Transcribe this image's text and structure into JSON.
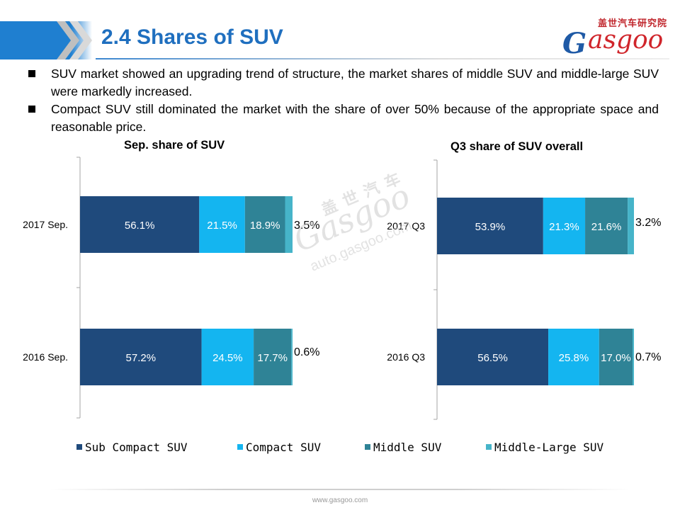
{
  "header": {
    "title": "2.4 Shares of SUV",
    "logo_cn": "盖世汽车研究院",
    "logo_word": "asgoo"
  },
  "bullets": [
    "SUV market showed an upgrading trend of structure, the market shares of middle SUV and middle-large SUV were markedly increased.",
    "Compact SUV still dominated the market with the share of over 50% because of the appropriate space and reasonable price."
  ],
  "watermark": {
    "cn": "盖 世 汽 车",
    "word": "Gasgoo",
    "url": "auto.gasgoo.com"
  },
  "legend": [
    "Sub Compact SUV",
    "Compact SUV",
    "Middle SUV",
    "Middle-Large SUV"
  ],
  "footer": "www.gasgoo.com",
  "colors": {
    "sub_compact": "#1f4a7c",
    "compact": "#14b5f0",
    "middle": "#2f8396",
    "middle_large": "#46b4c9",
    "title_blue": "#1f6fbf",
    "banner_blue": "#1f7fd0"
  },
  "chart_data": [
    {
      "type": "bar",
      "orientation": "horizontal",
      "stacked": true,
      "title": "Sep. share of SUV",
      "categories": [
        "2017 Sep.",
        "2016 Sep."
      ],
      "series": [
        {
          "name": "Sub Compact SUV",
          "values": [
            56.1,
            57.2
          ],
          "labels": [
            "56.1%",
            "57.2%"
          ]
        },
        {
          "name": "Compact SUV",
          "values": [
            21.5,
            24.5
          ],
          "labels": [
            "21.5%",
            "24.5%"
          ]
        },
        {
          "name": "Middle SUV",
          "values": [
            18.9,
            17.7
          ],
          "labels": [
            "18.9%",
            "17.7%"
          ]
        },
        {
          "name": "Middle-Large SUV",
          "values": [
            3.5,
            0.6
          ],
          "labels": [
            "3.5%",
            "0.6%"
          ]
        }
      ],
      "xlim": [
        0,
        100
      ]
    },
    {
      "type": "bar",
      "orientation": "horizontal",
      "stacked": true,
      "title": "Q3 share of SUV overall",
      "categories": [
        "2017 Q3",
        "2016 Q3"
      ],
      "series": [
        {
          "name": "Sub Compact SUV",
          "values": [
            53.9,
            56.5
          ],
          "labels": [
            "53.9%",
            "56.5%"
          ]
        },
        {
          "name": "Compact SUV",
          "values": [
            21.3,
            25.8
          ],
          "labels": [
            "21.3%",
            "25.8%"
          ]
        },
        {
          "name": "Middle SUV",
          "values": [
            21.6,
            17.0
          ],
          "labels": [
            "21.6%",
            "17.0%"
          ]
        },
        {
          "name": "Middle-Large SUV",
          "values": [
            3.2,
            0.7
          ],
          "labels": [
            "3.2%",
            "0.7%"
          ]
        }
      ],
      "xlim": [
        0,
        100
      ]
    }
  ]
}
